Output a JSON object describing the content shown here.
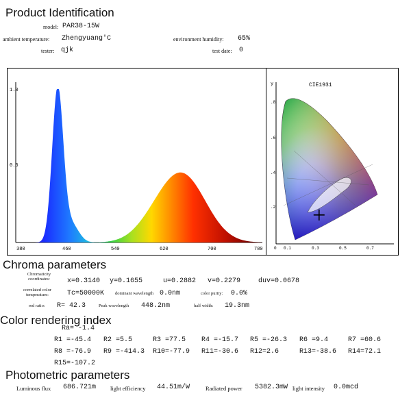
{
  "sections": {
    "product_id": "Product Identification",
    "chroma": "Chroma parameters",
    "cri": "Color rendering index",
    "photometric": "Photometric parameters"
  },
  "header": {
    "model_label": "model:",
    "model_value": "PAR38-15W",
    "ambient_label": "ambient temperature:",
    "ambient_value": "Zhengyuang'C",
    "humidity_label": "environment humidity:",
    "humidity_value": "65%",
    "tester_label": "tester:",
    "tester_value": "qjk",
    "date_label": "test date:",
    "date_value": "0"
  },
  "spectrum": {
    "ytick_top": "1.0",
    "ytick_mid": "0.5",
    "xticks": [
      "380",
      "460",
      "540",
      "620",
      "700",
      "780"
    ]
  },
  "cie": {
    "title": "CIE1931",
    "y_axis": "y",
    "yticks": [
      ".8",
      ".6",
      ".4",
      ".2"
    ],
    "xticks": [
      "0",
      "0.1",
      "0.3",
      "0.5",
      "0.7"
    ],
    "point": {
      "x": 0.314,
      "y": 0.1655
    }
  },
  "chroma": {
    "coord_label": "Chromaticity coordinates:",
    "x": "x=0.3140",
    "y": "y=0.1655",
    "u": "u=0.2882",
    "v": "v=0.2279",
    "duv": "duv=0.0678",
    "cct_label": "correlated color temperature:",
    "cct_value": "Tc=50000K",
    "dom_label": "dominant wavelength",
    "dom_value": "0.0nm",
    "purity_label": "color purity:",
    "purity_value": "0.0%",
    "red_label": "red ratio:",
    "red_value": "R= 42.3",
    "peak_label": "Peak wavelength",
    "peak_value": "448.2nm",
    "half_label": "half width:",
    "half_value": "19.3nm"
  },
  "cri": {
    "ra": "Ra= -1.4",
    "row1": [
      "R1 =-45.4",
      "R2 =5.5",
      "R3 =77.5",
      "R4 =-15.7",
      "R5 =-26.3",
      "R6 =9.4",
      "R7 =60.6"
    ],
    "row2": [
      "R8 =-76.9",
      "R9 =-414.3",
      "R10=-77.9",
      "R11=-30.6",
      "R12=2.6",
      "R13=-38.6",
      "R14=72.1"
    ],
    "row3": [
      "R15=-107.2"
    ]
  },
  "photometric": {
    "flux_label": "Luminous flux",
    "flux_value": "686.721m",
    "eff_label": "light efficiency",
    "eff_value": "44.51m/W",
    "rad_label": "Radiated power",
    "rad_value": "5382.3mW",
    "int_label": "light intensity",
    "int_value": "0.0mcd"
  },
  "colors": {
    "blue_peak": "#1a3cff",
    "red_band": "#c81e00"
  }
}
